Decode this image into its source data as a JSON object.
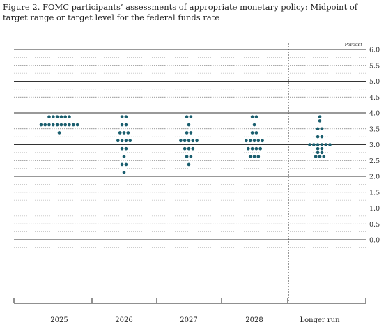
{
  "title": "Figure 2. FOMC participants’ assessments of appropriate monetary policy: Midpoint of target range or target level for the federal funds rate",
  "chart_data": {
    "type": "scatter",
    "subtype": "dot-plot",
    "title": "Figure 2. FOMC participants’ assessments of appropriate monetary policy: Midpoint of target range or target level for the federal funds rate",
    "ylabel": "Percent",
    "ylim": [
      -0.5,
      6.0
    ],
    "yticks": [
      "6.0",
      "5.5",
      "5.0",
      "4.5",
      "4.0",
      "3.5",
      "3.0",
      "2.5",
      "2.0",
      "1.5",
      "1.0",
      "0.5",
      "0.0"
    ],
    "grid": true,
    "categories": [
      "2025",
      "2026",
      "2027",
      "2028",
      "Longer run"
    ],
    "dot_color": "#1a5e6e",
    "series": [
      {
        "category": "2025",
        "points": [
          {
            "y": 3.875,
            "count": 6
          },
          {
            "y": 3.625,
            "count": 10
          },
          {
            "y": 3.375,
            "count": 1
          }
        ]
      },
      {
        "category": "2026",
        "points": [
          {
            "y": 3.875,
            "count": 2
          },
          {
            "y": 3.625,
            "count": 2
          },
          {
            "y": 3.375,
            "count": 3
          },
          {
            "y": 3.125,
            "count": 4
          },
          {
            "y": 2.875,
            "count": 2
          },
          {
            "y": 2.625,
            "count": 1
          },
          {
            "y": 2.375,
            "count": 2
          },
          {
            "y": 2.125,
            "count": 1
          }
        ]
      },
      {
        "category": "2027",
        "points": [
          {
            "y": 3.875,
            "count": 2
          },
          {
            "y": 3.625,
            "count": 1
          },
          {
            "y": 3.375,
            "count": 2
          },
          {
            "y": 3.125,
            "count": 5
          },
          {
            "y": 2.875,
            "count": 3
          },
          {
            "y": 2.625,
            "count": 2
          },
          {
            "y": 2.375,
            "count": 1
          }
        ]
      },
      {
        "category": "2028",
        "points": [
          {
            "y": 3.875,
            "count": 2
          },
          {
            "y": 3.625,
            "count": 1
          },
          {
            "y": 3.375,
            "count": 2
          },
          {
            "y": 3.125,
            "count": 5
          },
          {
            "y": 2.875,
            "count": 4
          },
          {
            "y": 2.625,
            "count": 3
          }
        ]
      },
      {
        "category": "Longer run",
        "points": [
          {
            "y": 3.875,
            "count": 1
          },
          {
            "y": 3.75,
            "count": 1
          },
          {
            "y": 3.5,
            "count": 2
          },
          {
            "y": 3.25,
            "count": 2
          },
          {
            "y": 3.0,
            "count": 6
          },
          {
            "y": 2.875,
            "count": 2
          },
          {
            "y": 2.75,
            "count": 2
          },
          {
            "y": 2.625,
            "count": 3
          }
        ]
      }
    ]
  }
}
